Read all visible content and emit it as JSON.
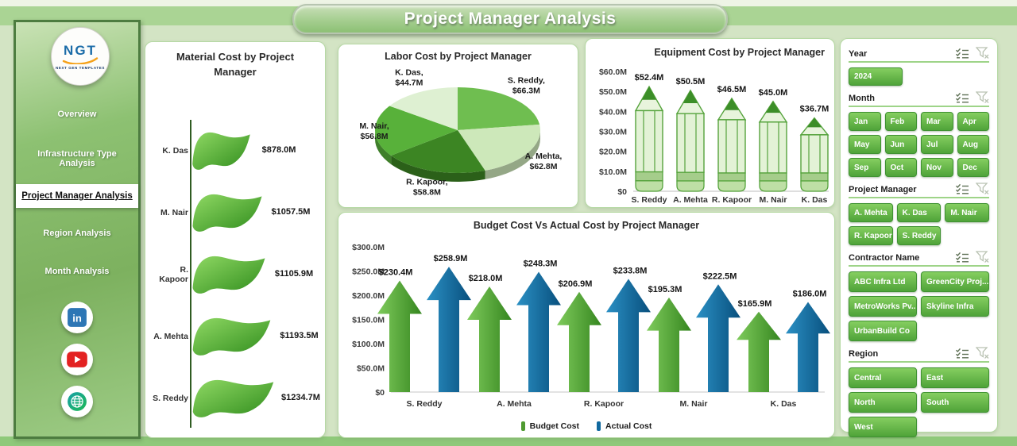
{
  "title": "Project Manager Analysis",
  "sidebar": {
    "logo": {
      "text": "NGT",
      "subtext": "NEXT GEN TEMPLATES"
    },
    "items": [
      {
        "label": "Overview",
        "active": false
      },
      {
        "label": "Infrastructure Type Analysis",
        "active": false
      },
      {
        "label": "Project Manager Analysis",
        "active": true
      },
      {
        "label": "Region Analysis",
        "active": false
      },
      {
        "label": "Month Analysis",
        "active": false
      }
    ],
    "social": [
      "linkedin",
      "youtube",
      "website"
    ]
  },
  "chart_data": [
    {
      "id": "material",
      "type": "bar",
      "orientation": "horizontal",
      "title": "Material Cost by Project Manager",
      "categories": [
        "K. Das",
        "M. Nair",
        "R. Kapoor",
        "A. Mehta",
        "S. Reddy"
      ],
      "values": [
        878.0,
        1057.5,
        1105.9,
        1193.5,
        1234.7
      ],
      "value_labels": [
        "$878.0M",
        "$1057.5M",
        "$1105.9M",
        "$1193.5M",
        "$1234.7M"
      ],
      "marker": "leaf-flag",
      "bar_color": "#4ea52f"
    },
    {
      "id": "labor",
      "type": "pie",
      "title": "Labor Cost by Project Manager",
      "categories": [
        "S. Reddy",
        "A. Mehta",
        "R. Kapoor",
        "M. Nair",
        "K. Das"
      ],
      "values": [
        66.3,
        62.8,
        58.8,
        56.8,
        44.7
      ],
      "value_labels": [
        "$66.3M",
        "$62.8M",
        "$58.8M",
        "$56.8M",
        "$44.7M"
      ],
      "colors": [
        "#6fbe50",
        "#cde8ba",
        "#3c8523",
        "#58b13a",
        "#def0d2"
      ],
      "style": "3d"
    },
    {
      "id": "equipment",
      "type": "bar",
      "title": "Equipment Cost by Project Manager",
      "categories": [
        "S. Reddy",
        "A. Mehta",
        "R. Kapoor",
        "M. Nair",
        "K. Das"
      ],
      "values": [
        52.4,
        50.5,
        46.5,
        45.0,
        36.7
      ],
      "value_labels": [
        "$52.4M",
        "$50.5M",
        "$46.5M",
        "$45.0M",
        "$36.7M"
      ],
      "ylim": [
        0,
        60
      ],
      "yticks": [
        "$60.0M",
        "$50.0M",
        "$40.0M",
        "$30.0M",
        "$20.0M",
        "$10.0M",
        "$0"
      ],
      "marker": "pencil",
      "bar_color": "#5aa83f"
    },
    {
      "id": "budget_vs_actual",
      "type": "bar",
      "title": "Budget Cost Vs Actual Cost by Project Manager",
      "categories": [
        "S. Reddy",
        "A. Mehta",
        "R. Kapoor",
        "M. Nair",
        "K. Das"
      ],
      "series": [
        {
          "name": "Budget Cost",
          "color": "#4f9a31",
          "values": [
            230.4,
            218.0,
            206.9,
            195.3,
            165.9
          ],
          "value_labels": [
            "$230.4M",
            "$218.0M",
            "$206.9M",
            "$195.3M",
            "$165.9M"
          ]
        },
        {
          "name": "Actual Cost",
          "color": "#10699f",
          "values": [
            258.9,
            248.3,
            233.8,
            222.5,
            186.0
          ],
          "value_labels": [
            "$258.9M",
            "$248.3M",
            "$233.8M",
            "$222.5M",
            "$186.0M"
          ]
        }
      ],
      "ylim": [
        0,
        300
      ],
      "yticks": [
        "$300.0M",
        "$250.0M",
        "$200.0M",
        "$150.0M",
        "$100.0M",
        "$50.0M",
        "$0"
      ],
      "legend_position": "bottom",
      "marker": "arrow"
    }
  ],
  "filters": {
    "year": {
      "label": "Year",
      "options": [
        "2024"
      ]
    },
    "month": {
      "label": "Month",
      "options": [
        "Jan",
        "Feb",
        "Mar",
        "Apr",
        "May",
        "Jun",
        "Jul",
        "Aug",
        "Sep",
        "Oct",
        "Nov",
        "Dec"
      ]
    },
    "project_manager": {
      "label": "Project Manager",
      "options": [
        "A. Mehta",
        "K. Das",
        "M. Nair",
        "R. Kapoor",
        "S. Reddy"
      ]
    },
    "contractor": {
      "label": "Contractor Name",
      "options": [
        "ABC Infra Ltd",
        "GreenCity Proj...",
        "MetroWorks Pv...",
        "Skyline Infra",
        "UrbanBuild Co"
      ]
    },
    "region": {
      "label": "Region",
      "options": [
        "Central",
        "East",
        "North",
        "South",
        "West"
      ]
    }
  },
  "theme": {
    "accent_green": "#5fae43",
    "arrow_green": "#3f8f2a",
    "arrow_blue": "#0e6397",
    "background": "#d3e4c4"
  }
}
